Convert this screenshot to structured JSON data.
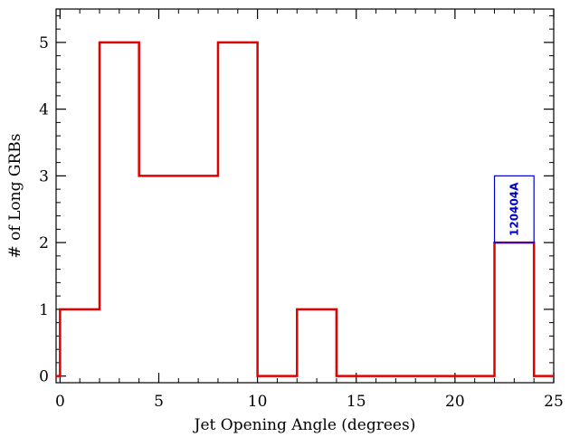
{
  "chart_data": {
    "type": "bar",
    "title": "",
    "xlabel": "Jet Opening Angle (degrees)",
    "ylabel": "# of Long GRBs",
    "xlim": [
      -0.2,
      25
    ],
    "ylim": [
      -0.1,
      5.5
    ],
    "xticks": [
      "0",
      "5",
      "10",
      "15",
      "20",
      "25"
    ],
    "yticks": [
      "0",
      "1",
      "2",
      "3",
      "4",
      "5"
    ],
    "bins": [
      {
        "x0": 0,
        "x1": 2,
        "count": 1
      },
      {
        "x0": 2,
        "x1": 4,
        "count": 5
      },
      {
        "x0": 4,
        "x1": 6,
        "count": 3
      },
      {
        "x0": 6,
        "x1": 8,
        "count": 3
      },
      {
        "x0": 8,
        "x1": 10,
        "count": 5
      },
      {
        "x0": 10,
        "x1": 12,
        "count": 0
      },
      {
        "x0": 12,
        "x1": 14,
        "count": 1
      },
      {
        "x0": 14,
        "x1": 16,
        "count": 0
      },
      {
        "x0": 16,
        "x1": 18,
        "count": 0
      },
      {
        "x0": 18,
        "x1": 20,
        "count": 0
      },
      {
        "x0": 20,
        "x1": 22,
        "count": 0
      },
      {
        "x0": 22,
        "x1": 24,
        "count": 2
      }
    ],
    "annotation": {
      "label": "120404A",
      "x0": 22,
      "x1": 24,
      "y0": 2,
      "y1": 3
    },
    "colors": {
      "histogram": "#e00000",
      "annotation": "#0000cc",
      "axes": "#000000"
    },
    "grid": false,
    "legend": "none"
  }
}
